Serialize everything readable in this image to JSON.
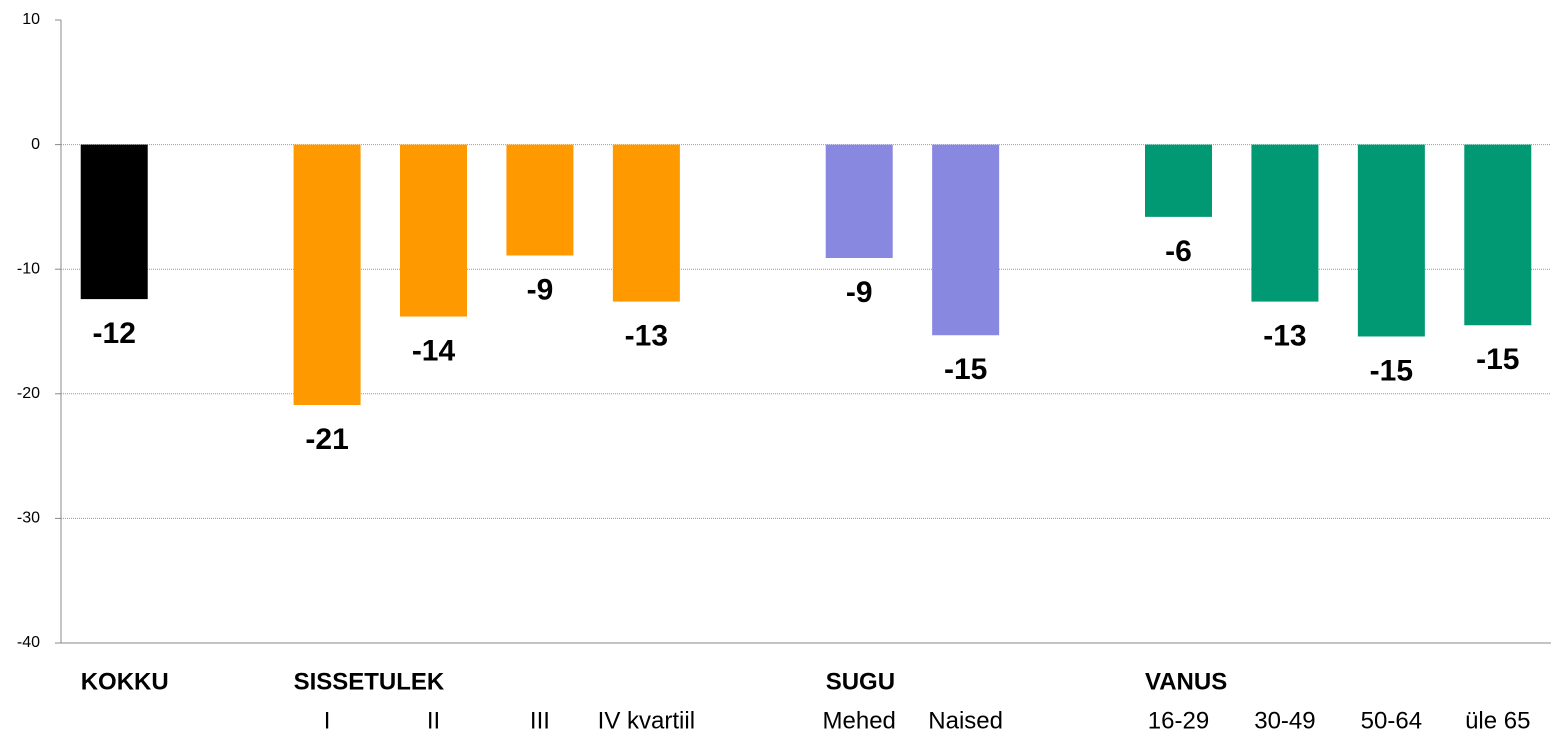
{
  "chart_data": {
    "type": "bar",
    "group_labels": [
      "KOKKU",
      null,
      "SISSETULEK",
      null,
      null,
      null,
      null,
      "SUGU",
      null,
      null,
      "VANUS",
      null,
      null,
      null
    ],
    "categories": [
      null,
      null,
      "I",
      "II",
      "III",
      "IV kvartiil",
      null,
      "Mehed",
      "Naised",
      null,
      "16-29",
      "30-49",
      "50-64",
      "üle 65"
    ],
    "values": [
      -12.4,
      null,
      -20.9,
      -13.8,
      -8.9,
      -12.6,
      null,
      -9.1,
      -15.3,
      null,
      -5.8,
      -12.6,
      -15.4,
      -14.5
    ],
    "value_labels": [
      "-12",
      null,
      "-21",
      "-14",
      "-9",
      "-13",
      null,
      "-9",
      "-15",
      null,
      "-6",
      "-13",
      "-15",
      "-15"
    ],
    "colors": [
      "#000000",
      null,
      "#ff9900",
      "#ff9900",
      "#ff9900",
      "#ff9900",
      null,
      "#8888e0",
      "#8888e0",
      null,
      "#009973",
      "#009973",
      "#009973",
      "#009973"
    ],
    "ylim": [
      -40,
      10
    ],
    "yticks": [
      -40,
      -30,
      -20,
      -10,
      0,
      10
    ],
    "grid": true
  }
}
